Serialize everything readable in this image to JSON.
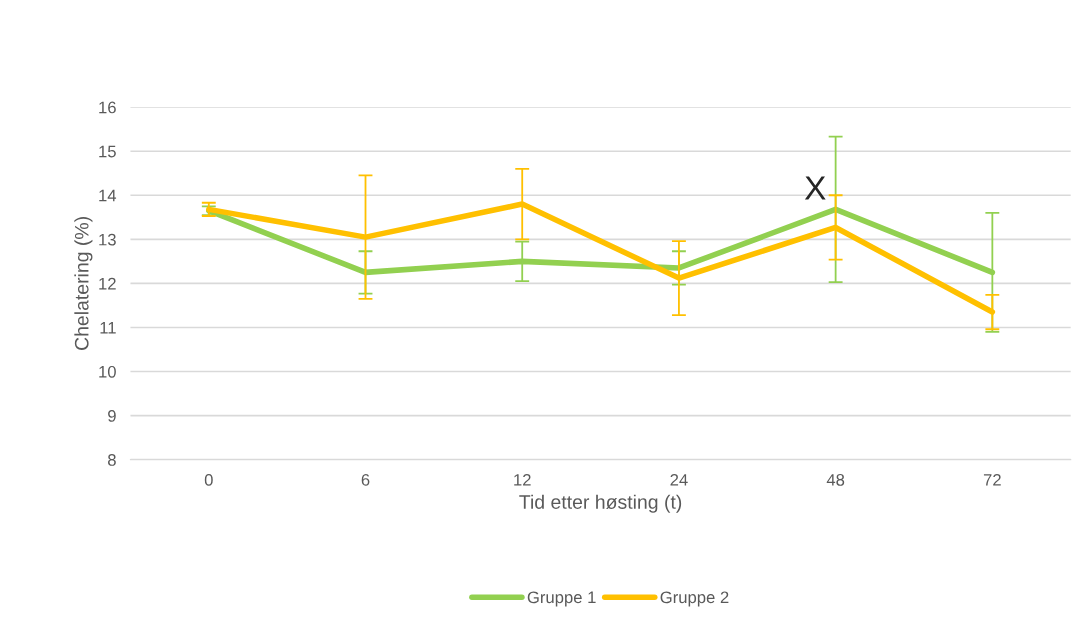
{
  "chart_data": {
    "type": "line",
    "xlabel": "Tid etter høsting (t)",
    "ylabel": "Chelatering (%)",
    "categories": [
      "0",
      "6",
      "12",
      "24",
      "48",
      "72"
    ],
    "series": [
      {
        "name": "Gruppe 1",
        "color": "#92d050",
        "values": [
          13.65,
          12.25,
          12.5,
          12.35,
          13.68,
          12.25
        ],
        "errors": [
          0.1,
          0.48,
          0.45,
          0.38,
          1.65,
          1.35
        ]
      },
      {
        "name": "Gruppe 2",
        "color": "#ffc000",
        "values": [
          13.68,
          13.05,
          13.8,
          12.12,
          13.27,
          11.35
        ],
        "errors": [
          0.15,
          1.4,
          0.8,
          0.84,
          0.73,
          0.39
        ]
      }
    ],
    "ylim": [
      8,
      16
    ],
    "yticks": [
      8,
      9,
      10,
      11,
      12,
      13,
      14,
      15,
      16
    ],
    "grid": "y",
    "legend": "bottom",
    "marker": "none",
    "line_style": "solid",
    "annotations": [
      {
        "text": "X",
        "x": "48",
        "y": 14.1
      }
    ]
  }
}
